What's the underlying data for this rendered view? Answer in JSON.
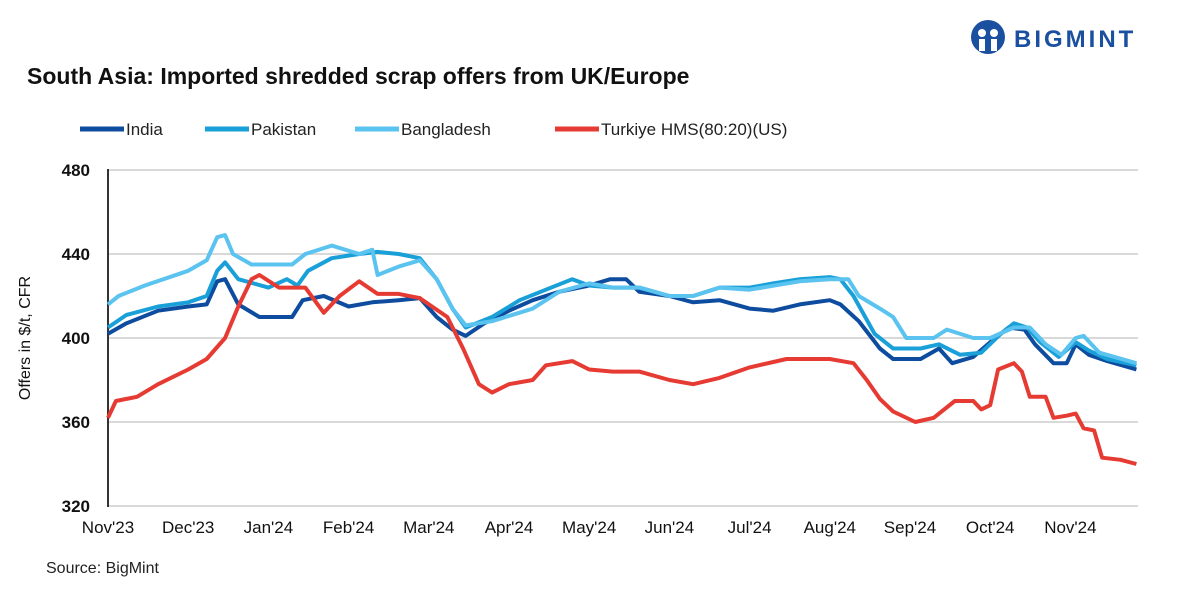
{
  "logo": {
    "text": "BIGMINT",
    "color": "#1b4fa0"
  },
  "chart_data": {
    "type": "line",
    "title": "South Asia: Imported shredded scrap offers from UK/Europe",
    "xlabel": "",
    "ylabel": "Offers in $/t, CFR",
    "ylim": [
      320,
      480
    ],
    "yticks": [
      320,
      360,
      400,
      440,
      480
    ],
    "xticks": [
      "Nov'23",
      "Dec'23",
      "Jan'24",
      "Feb'24",
      "Mar'24",
      "Apr'24",
      "May'24",
      "Jun'24",
      "Jul'24",
      "Aug'24",
      "Sep'24",
      "Oct'24",
      "Nov'24"
    ],
    "grid": "horizontal",
    "legend_position": "top",
    "source": "Source: BigMint",
    "series": [
      {
        "name": "India",
        "color": "#0d4c9e",
        "points": [
          [
            "2023-11-01",
            402
          ],
          [
            "2023-11-08",
            407
          ],
          [
            "2023-11-20",
            413
          ],
          [
            "2023-12-01",
            415
          ],
          [
            "2023-12-08",
            416
          ],
          [
            "2023-12-12",
            427
          ],
          [
            "2023-12-15",
            428
          ],
          [
            "2023-12-20",
            416
          ],
          [
            "2023-12-28",
            410
          ],
          [
            "2024-01-10",
            410
          ],
          [
            "2024-01-14",
            418
          ],
          [
            "2024-01-22",
            420
          ],
          [
            "2024-02-01",
            415
          ],
          [
            "2024-02-10",
            417
          ],
          [
            "2024-02-20",
            418
          ],
          [
            "2024-02-28",
            419
          ],
          [
            "2024-03-04",
            410
          ],
          [
            "2024-03-10",
            404
          ],
          [
            "2024-03-15",
            401
          ],
          [
            "2024-03-22",
            407
          ],
          [
            "2024-04-01",
            413
          ],
          [
            "2024-04-10",
            418
          ],
          [
            "2024-04-20",
            422
          ],
          [
            "2024-05-01",
            425
          ],
          [
            "2024-05-09",
            428
          ],
          [
            "2024-05-15",
            428
          ],
          [
            "2024-05-20",
            422
          ],
          [
            "2024-06-01",
            420
          ],
          [
            "2024-06-10",
            417
          ],
          [
            "2024-06-20",
            418
          ],
          [
            "2024-07-01",
            414
          ],
          [
            "2024-07-10",
            413
          ],
          [
            "2024-07-20",
            416
          ],
          [
            "2024-08-01",
            418
          ],
          [
            "2024-08-05",
            416
          ],
          [
            "2024-08-12",
            408
          ],
          [
            "2024-08-20",
            395
          ],
          [
            "2024-08-25",
            390
          ],
          [
            "2024-09-05",
            390
          ],
          [
            "2024-09-12",
            395
          ],
          [
            "2024-09-17",
            388
          ],
          [
            "2024-09-25",
            391
          ],
          [
            "2024-10-01",
            398
          ],
          [
            "2024-10-08",
            405
          ],
          [
            "2024-10-14",
            404
          ],
          [
            "2024-10-18",
            397
          ],
          [
            "2024-10-25",
            388
          ],
          [
            "2024-10-30",
            388
          ],
          [
            "2024-11-03",
            397
          ],
          [
            "2024-11-08",
            392
          ],
          [
            "2024-11-15",
            389
          ],
          [
            "2024-11-26",
            385
          ]
        ]
      },
      {
        "name": "Pakistan",
        "color": "#1aa0d8",
        "points": [
          [
            "2023-11-01",
            405
          ],
          [
            "2023-11-08",
            411
          ],
          [
            "2023-11-20",
            415
          ],
          [
            "2023-12-01",
            417
          ],
          [
            "2023-12-08",
            420
          ],
          [
            "2023-12-12",
            432
          ],
          [
            "2023-12-15",
            436
          ],
          [
            "2023-12-20",
            428
          ],
          [
            "2024-01-01",
            424
          ],
          [
            "2024-01-08",
            428
          ],
          [
            "2024-01-12",
            425
          ],
          [
            "2024-01-16",
            432
          ],
          [
            "2024-01-25",
            438
          ],
          [
            "2024-02-05",
            440
          ],
          [
            "2024-02-12",
            441
          ],
          [
            "2024-02-20",
            440
          ],
          [
            "2024-02-28",
            438
          ],
          [
            "2024-03-04",
            428
          ],
          [
            "2024-03-10",
            414
          ],
          [
            "2024-03-15",
            405
          ],
          [
            "2024-03-25",
            410
          ],
          [
            "2024-04-05",
            418
          ],
          [
            "2024-04-15",
            423
          ],
          [
            "2024-04-25",
            428
          ],
          [
            "2024-05-01",
            425
          ],
          [
            "2024-05-10",
            424
          ],
          [
            "2024-05-20",
            424
          ],
          [
            "2024-06-01",
            420
          ],
          [
            "2024-06-10",
            420
          ],
          [
            "2024-06-20",
            424
          ],
          [
            "2024-07-01",
            424
          ],
          [
            "2024-07-10",
            426
          ],
          [
            "2024-07-20",
            428
          ],
          [
            "2024-08-01",
            429
          ],
          [
            "2024-08-05",
            428
          ],
          [
            "2024-08-10",
            420
          ],
          [
            "2024-08-18",
            402
          ],
          [
            "2024-08-25",
            395
          ],
          [
            "2024-09-05",
            395
          ],
          [
            "2024-09-12",
            397
          ],
          [
            "2024-09-20",
            392
          ],
          [
            "2024-09-28",
            393
          ],
          [
            "2024-10-05",
            402
          ],
          [
            "2024-10-10",
            407
          ],
          [
            "2024-10-15",
            405
          ],
          [
            "2024-10-20",
            398
          ],
          [
            "2024-10-27",
            391
          ],
          [
            "2024-11-03",
            398
          ],
          [
            "2024-11-08",
            394
          ],
          [
            "2024-11-15",
            390
          ],
          [
            "2024-11-26",
            387
          ]
        ]
      },
      {
        "name": "Bangladesh",
        "color": "#5bc3ef",
        "points": [
          [
            "2023-11-01",
            416
          ],
          [
            "2023-11-05",
            420
          ],
          [
            "2023-11-15",
            425
          ],
          [
            "2023-12-01",
            432
          ],
          [
            "2023-12-08",
            437
          ],
          [
            "2023-12-12",
            448
          ],
          [
            "2023-12-15",
            449
          ],
          [
            "2023-12-18",
            440
          ],
          [
            "2023-12-25",
            435
          ],
          [
            "2024-01-10",
            435
          ],
          [
            "2024-01-15",
            440
          ],
          [
            "2024-01-25",
            444
          ],
          [
            "2024-02-05",
            440
          ],
          [
            "2024-02-10",
            442
          ],
          [
            "2024-02-12",
            430
          ],
          [
            "2024-02-20",
            434
          ],
          [
            "2024-02-28",
            437
          ],
          [
            "2024-03-04",
            428
          ],
          [
            "2024-03-10",
            414
          ],
          [
            "2024-03-15",
            406
          ],
          [
            "2024-03-25",
            408
          ],
          [
            "2024-04-10",
            414
          ],
          [
            "2024-04-20",
            422
          ],
          [
            "2024-05-01",
            426
          ],
          [
            "2024-05-10",
            424
          ],
          [
            "2024-05-20",
            424
          ],
          [
            "2024-06-01",
            420
          ],
          [
            "2024-06-10",
            420
          ],
          [
            "2024-06-20",
            424
          ],
          [
            "2024-07-01",
            423
          ],
          [
            "2024-07-20",
            427
          ],
          [
            "2024-08-01",
            428
          ],
          [
            "2024-08-08",
            428
          ],
          [
            "2024-08-12",
            420
          ],
          [
            "2024-08-20",
            414
          ],
          [
            "2024-08-25",
            410
          ],
          [
            "2024-08-30",
            400
          ],
          [
            "2024-09-10",
            400
          ],
          [
            "2024-09-15",
            404
          ],
          [
            "2024-09-25",
            400
          ],
          [
            "2024-10-01",
            400
          ],
          [
            "2024-10-10",
            405
          ],
          [
            "2024-10-16",
            405
          ],
          [
            "2024-10-22",
            397
          ],
          [
            "2024-10-28",
            392
          ],
          [
            "2024-11-03",
            400
          ],
          [
            "2024-11-06",
            401
          ],
          [
            "2024-11-12",
            393
          ],
          [
            "2024-11-26",
            388
          ]
        ]
      },
      {
        "name": "Turkiye HMS(80:20)(US)",
        "color": "#e63b33",
        "points": [
          [
            "2023-11-01",
            362
          ],
          [
            "2023-11-04",
            370
          ],
          [
            "2023-11-12",
            372
          ],
          [
            "2023-11-20",
            378
          ],
          [
            "2023-12-01",
            385
          ],
          [
            "2023-12-08",
            390
          ],
          [
            "2023-12-15",
            400
          ],
          [
            "2023-12-20",
            415
          ],
          [
            "2023-12-25",
            428
          ],
          [
            "2023-12-28",
            430
          ],
          [
            "2024-01-05",
            424
          ],
          [
            "2024-01-15",
            424
          ],
          [
            "2024-01-22",
            412
          ],
          [
            "2024-01-28",
            420
          ],
          [
            "2024-02-05",
            427
          ],
          [
            "2024-02-12",
            421
          ],
          [
            "2024-02-20",
            421
          ],
          [
            "2024-02-28",
            419
          ],
          [
            "2024-03-08",
            410
          ],
          [
            "2024-03-14",
            395
          ],
          [
            "2024-03-20",
            378
          ],
          [
            "2024-03-25",
            374
          ],
          [
            "2024-04-01",
            378
          ],
          [
            "2024-04-10",
            380
          ],
          [
            "2024-04-15",
            387
          ],
          [
            "2024-04-25",
            389
          ],
          [
            "2024-05-01",
            385
          ],
          [
            "2024-05-10",
            384
          ],
          [
            "2024-05-20",
            384
          ],
          [
            "2024-06-01",
            380
          ],
          [
            "2024-06-10",
            378
          ],
          [
            "2024-06-20",
            381
          ],
          [
            "2024-07-01",
            386
          ],
          [
            "2024-07-15",
            390
          ],
          [
            "2024-07-25",
            390
          ],
          [
            "2024-08-01",
            390
          ],
          [
            "2024-08-10",
            388
          ],
          [
            "2024-08-15",
            380
          ],
          [
            "2024-08-20",
            371
          ],
          [
            "2024-08-25",
            365
          ],
          [
            "2024-09-03",
            360
          ],
          [
            "2024-09-10",
            362
          ],
          [
            "2024-09-18",
            370
          ],
          [
            "2024-09-25",
            370
          ],
          [
            "2024-09-28",
            366
          ],
          [
            "2024-10-01",
            368
          ],
          [
            "2024-10-04",
            385
          ],
          [
            "2024-10-10",
            388
          ],
          [
            "2024-10-13",
            384
          ],
          [
            "2024-10-16",
            372
          ],
          [
            "2024-10-22",
            372
          ],
          [
            "2024-10-25",
            362
          ],
          [
            "2024-10-30",
            363
          ],
          [
            "2024-11-03",
            364
          ],
          [
            "2024-11-06",
            357
          ],
          [
            "2024-11-10",
            356
          ],
          [
            "2024-11-13",
            343
          ],
          [
            "2024-11-20",
            342
          ],
          [
            "2024-11-26",
            340
          ]
        ]
      }
    ]
  }
}
